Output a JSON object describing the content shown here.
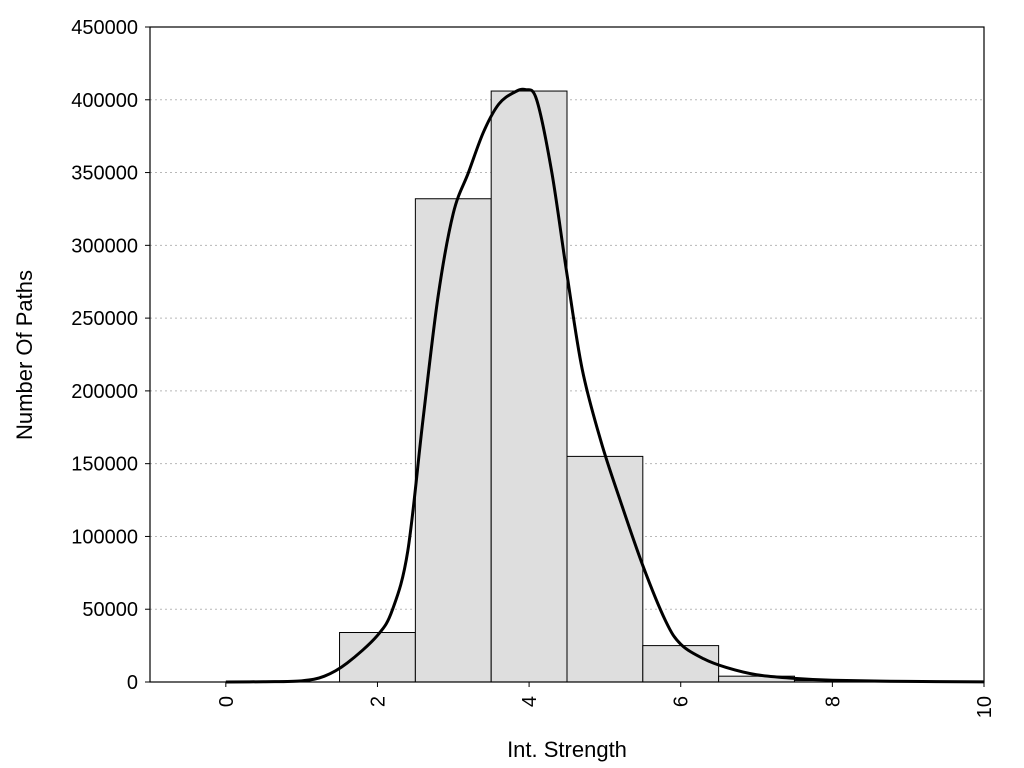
{
  "chart_data": {
    "type": "bar",
    "xlabel": "Int. Strength",
    "ylabel": "Number Of Paths",
    "xlim": [
      -1,
      10
    ],
    "ylim": [
      0,
      450000
    ],
    "x_ticks": [
      0,
      2,
      4,
      6,
      8,
      10
    ],
    "x_tick_labels": [
      "0",
      "2",
      "4",
      "6",
      "8",
      "10"
    ],
    "y_ticks": [
      0,
      50000,
      100000,
      150000,
      200000,
      250000,
      300000,
      350000,
      400000,
      450000
    ],
    "y_tick_labels": [
      "0",
      "50000",
      "100000",
      "150000",
      "200000",
      "250000",
      "300000",
      "350000",
      "400000",
      "450000"
    ],
    "grid": "horizontal dotted",
    "legend": "none",
    "bins": [
      {
        "center": 0,
        "value": 0
      },
      {
        "center": 1,
        "value": 0
      },
      {
        "center": 2,
        "value": 34000
      },
      {
        "center": 3,
        "value": 332000
      },
      {
        "center": 4,
        "value": 406000
      },
      {
        "center": 5,
        "value": 155000
      },
      {
        "center": 6,
        "value": 25000
      },
      {
        "center": 7,
        "value": 4000
      },
      {
        "center": 8,
        "value": 1000
      },
      {
        "center": 9,
        "value": 0
      },
      {
        "center": 10,
        "value": 0
      }
    ],
    "bin_width": 1,
    "curve": [
      [
        0,
        0
      ],
      [
        0.5,
        200
      ],
      [
        1,
        800
      ],
      [
        1.3,
        4000
      ],
      [
        1.6,
        13000
      ],
      [
        2,
        32000
      ],
      [
        2.2,
        50000
      ],
      [
        2.4,
        90000
      ],
      [
        2.6,
        180000
      ],
      [
        2.8,
        265000
      ],
      [
        3,
        322000
      ],
      [
        3.2,
        350000
      ],
      [
        3.4,
        378000
      ],
      [
        3.6,
        397000
      ],
      [
        3.8,
        405000
      ],
      [
        3.95,
        407000
      ],
      [
        4.1,
        400000
      ],
      [
        4.3,
        350000
      ],
      [
        4.5,
        280000
      ],
      [
        4.7,
        215000
      ],
      [
        4.95,
        165000
      ],
      [
        5.2,
        125000
      ],
      [
        5.5,
        80000
      ],
      [
        5.8,
        42000
      ],
      [
        6,
        26000
      ],
      [
        6.3,
        16000
      ],
      [
        6.6,
        10000
      ],
      [
        7,
        5000
      ],
      [
        7.5,
        2500
      ],
      [
        8,
        1200
      ],
      [
        9,
        400
      ],
      [
        10,
        100
      ]
    ],
    "colors": {
      "bar_fill": "#dedede",
      "bar_stroke": "#000000",
      "curve": "#000000",
      "grid": "#b8b8b8"
    }
  }
}
